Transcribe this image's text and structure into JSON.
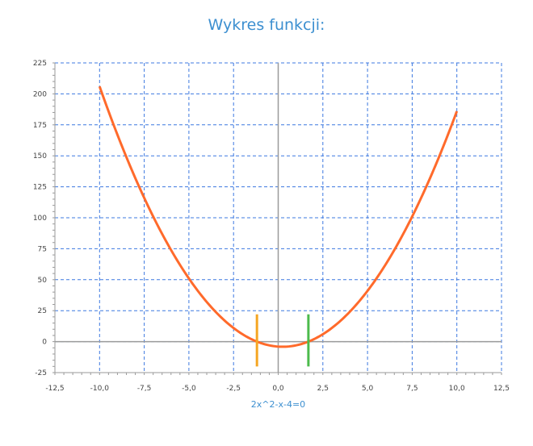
{
  "chart_data": {
    "type": "line",
    "title": "Wykres funkcji:",
    "xlabel": "2x^2-x-4=0",
    "ylabel": "",
    "xlim": [
      -12.5,
      12.5
    ],
    "ylim": [
      -25,
      225
    ],
    "x_ticks": [
      -12.5,
      -10.0,
      -7.5,
      -5.0,
      -2.5,
      0,
      2.5,
      5.0,
      7.5,
      10.0,
      12.5
    ],
    "x_tick_labels": [
      "-12,5",
      "-10,0",
      "-7,5",
      "-5,0",
      "-2,5",
      "0,0",
      "2,5",
      "5,0",
      "7,5",
      "10,0",
      "12,5"
    ],
    "y_ticks": [
      -25,
      0,
      25,
      50,
      75,
      100,
      125,
      150,
      175,
      200,
      225
    ],
    "y_tick_labels": [
      "-25",
      "0",
      "25",
      "50",
      "75",
      "100",
      "125",
      "150",
      "175",
      "200",
      "225"
    ],
    "grid": true,
    "function": {
      "a": 2,
      "b": -1,
      "c": -4,
      "x_range": [
        -10,
        10
      ]
    },
    "roots": [
      {
        "x": -1.19,
        "color": "#f5a623",
        "y_span": [
          -20,
          22
        ]
      },
      {
        "x": 1.69,
        "color": "#4cbb4c",
        "y_span": [
          -20,
          22
        ]
      }
    ],
    "colors": {
      "curve": "#ff6a2b",
      "grid": "#3c78e0",
      "axis": "#9a9a9a",
      "title": "#3c8fd0"
    }
  }
}
